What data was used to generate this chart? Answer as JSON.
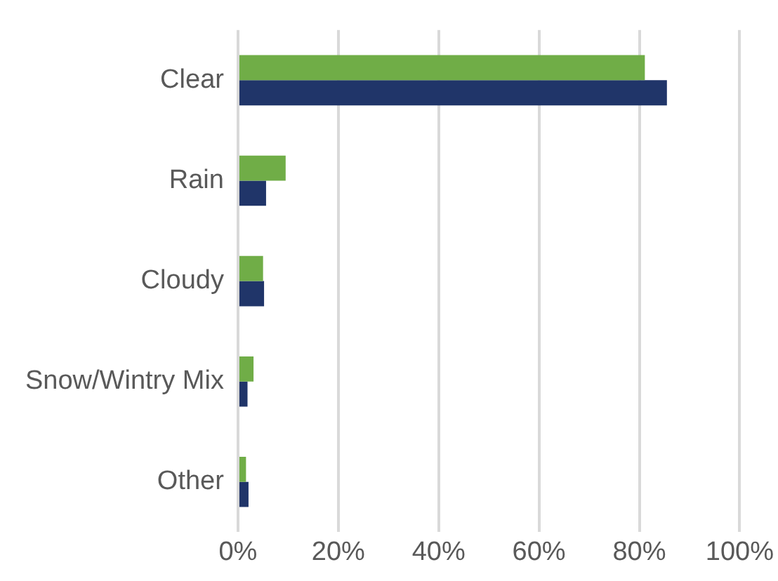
{
  "chart_data": {
    "type": "bar",
    "orientation": "horizontal",
    "categories": [
      "Clear",
      "Rain",
      "Cloudy",
      "Snow/Wintry Mix",
      "Other"
    ],
    "series": [
      {
        "color": "#70ad47",
        "values": [
          81.1,
          9.5,
          5.0,
          3.1,
          1.6
        ]
      },
      {
        "color": "#203569",
        "values": [
          85.5,
          5.6,
          5.2,
          1.9,
          2.1
        ]
      }
    ],
    "xlim": [
      0,
      100
    ],
    "xticks": [
      {
        "value": 0,
        "label": "0%"
      },
      {
        "value": 20,
        "label": "20%"
      },
      {
        "value": 40,
        "label": "40%"
      },
      {
        "value": 60,
        "label": "60%"
      },
      {
        "value": 80,
        "label": "80%"
      },
      {
        "value": 100,
        "label": "100%"
      }
    ],
    "grid": "x",
    "legend": false
  }
}
